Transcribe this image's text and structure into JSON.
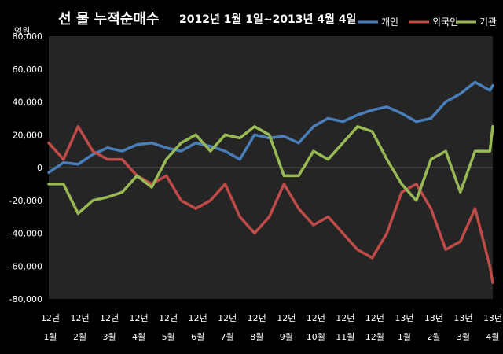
{
  "chart_data": {
    "type": "line",
    "title_main": "선 물 누적순매수",
    "title_range": "2012년 1월 1일~2013년 4월 4일",
    "ylabel": "억원",
    "ylim": [
      -80000,
      80000
    ],
    "yticks": [
      80000,
      60000,
      40000,
      20000,
      0,
      -20000,
      -40000,
      -60000,
      -80000
    ],
    "ytick_labels": [
      "80,000",
      "60,000",
      "40,000",
      "20,000",
      "0",
      "-20,000",
      "-40,000",
      "-60,000",
      "-80,000"
    ],
    "x_year_labels": [
      "12년",
      "12년",
      "12년",
      "12년",
      "12년",
      "12년",
      "12년",
      "12년",
      "12년",
      "12년",
      "12년",
      "12년",
      "13년",
      "13년",
      "13년",
      "13년"
    ],
    "x_month_labels": [
      "1월",
      "2월",
      "3월",
      "4월",
      "5월",
      "6월",
      "7월",
      "8월",
      "9월",
      "10월",
      "11월",
      "12월",
      "1월",
      "2월",
      "3월",
      "4월"
    ],
    "grid": false,
    "legend_position": "top-right",
    "x": [
      0.0,
      0.5,
      1.0,
      1.5,
      2.0,
      2.5,
      3.0,
      3.5,
      4.0,
      4.5,
      5.0,
      5.5,
      6.0,
      6.5,
      7.0,
      7.5,
      8.0,
      8.5,
      9.0,
      9.5,
      10.0,
      10.5,
      11.0,
      11.5,
      12.0,
      12.5,
      13.0,
      13.5,
      14.0,
      14.5,
      15.0,
      15.1
    ],
    "series": [
      {
        "name": "개인",
        "color": "#4a7ebb",
        "values": [
          -3000,
          3000,
          2000,
          8000,
          12000,
          10000,
          14000,
          15000,
          12000,
          10000,
          15000,
          13000,
          10000,
          5000,
          20000,
          18000,
          19000,
          15000,
          25000,
          30000,
          28000,
          32000,
          35000,
          37000,
          33000,
          28000,
          30000,
          40000,
          45000,
          52000,
          47000,
          50000
        ]
      },
      {
        "name": "외국인",
        "color": "#be4b48",
        "values": [
          15000,
          5000,
          25000,
          10000,
          5000,
          5000,
          -5000,
          -10000,
          -5000,
          -20000,
          -25000,
          -20000,
          -10000,
          -30000,
          -40000,
          -30000,
          -10000,
          -25000,
          -35000,
          -30000,
          -40000,
          -50000,
          -55000,
          -40000,
          -15000,
          -10000,
          -25000,
          -50000,
          -45000,
          -25000,
          -60000,
          -70000
        ]
      },
      {
        "name": "기관",
        "color": "#98b954",
        "values": [
          -10000,
          -10000,
          -28000,
          -20000,
          -18000,
          -15000,
          -5000,
          -12000,
          5000,
          15000,
          20000,
          10000,
          20000,
          18000,
          25000,
          20000,
          -5000,
          -5000,
          10000,
          5000,
          15000,
          25000,
          22000,
          5000,
          -10000,
          -20000,
          5000,
          10000,
          -15000,
          10000,
          10000,
          25000
        ]
      }
    ]
  }
}
